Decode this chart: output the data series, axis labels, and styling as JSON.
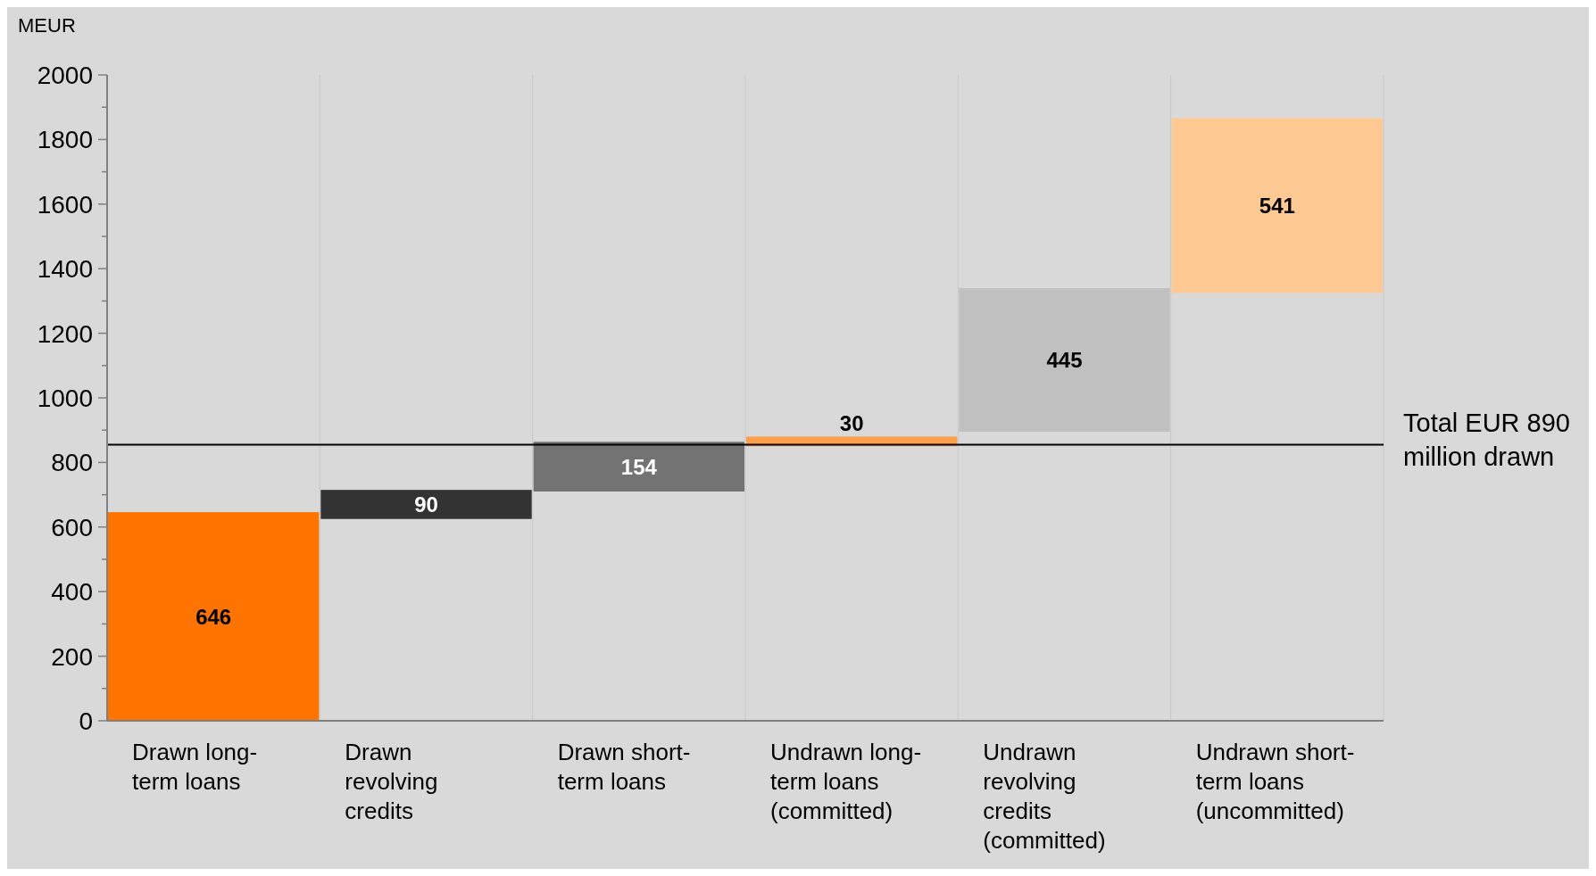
{
  "chart_data": {
    "type": "bar",
    "ylabel": "MEUR",
    "categories": [
      "Drawn long-term loans",
      "Drawn revolving credits",
      "Drawn short-term loans",
      "Undrawn long-term loans (committed)",
      "Undrawn revolving credits (committed)",
      "Undrawn short-term loans (uncommitted)"
    ],
    "values": [
      646,
      90,
      154,
      30,
      445,
      541
    ],
    "base": [
      0,
      625,
      710,
      850,
      895,
      1325
    ],
    "colors": [
      "#ff7300",
      "#333333",
      "#737373",
      "#ff9f4a",
      "#c0c0c0",
      "#ffc993"
    ],
    "data_labels": true,
    "ylim": [
      0,
      2000
    ],
    "yticks": [
      0,
      {
        "value": 100,
        "label": null
      },
      200,
      {
        "value": 300,
        "label": null
      },
      400,
      {
        "value": 500,
        "label": null
      },
      600,
      {
        "value": 700,
        "label": null
      },
      800,
      {
        "value": 900,
        "label": null
      },
      1000,
      {
        "value": 1100,
        "label": null
      },
      1200,
      {
        "value": 1300,
        "label": null
      },
      1400,
      {
        "value": 1500,
        "label": null
      },
      1600,
      {
        "value": 1700,
        "label": null
      },
      1800,
      {
        "value": 1900,
        "label": null
      },
      2000
    ],
    "grid": "x",
    "ref_lines": [
      {
        "axis": "y",
        "value": 855,
        "label": "Total EUR 890 million drawn",
        "color": "#000000"
      }
    ]
  }
}
